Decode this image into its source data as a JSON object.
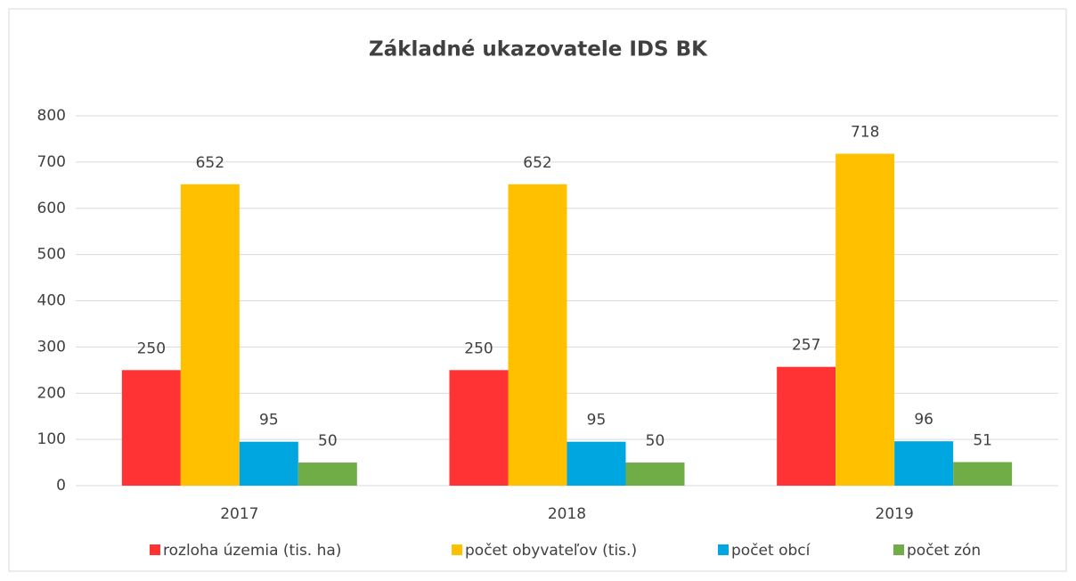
{
  "chart_data": {
    "type": "bar",
    "title": "Základné ukazovatele IDS BK",
    "categories": [
      "2017",
      "2018",
      "2019"
    ],
    "series": [
      {
        "name": "rozloha územia (tis. ha)",
        "color": "#ff3333",
        "values": [
          250,
          250,
          257
        ]
      },
      {
        "name": "počet obyvateľov (tis.)",
        "color": "#ffc000",
        "values": [
          652,
          652,
          718
        ]
      },
      {
        "name": "počet obcí",
        "color": "#00a6e0",
        "values": [
          95,
          95,
          96
        ]
      },
      {
        "name": "počet zón",
        "color": "#70ad47",
        "values": [
          50,
          50,
          51
        ]
      }
    ],
    "ylim": [
      0,
      800
    ],
    "yticks": [
      0,
      100,
      200,
      300,
      400,
      500,
      600,
      700,
      800
    ],
    "grid": true,
    "legend": "bottom",
    "data_labels": true
  }
}
